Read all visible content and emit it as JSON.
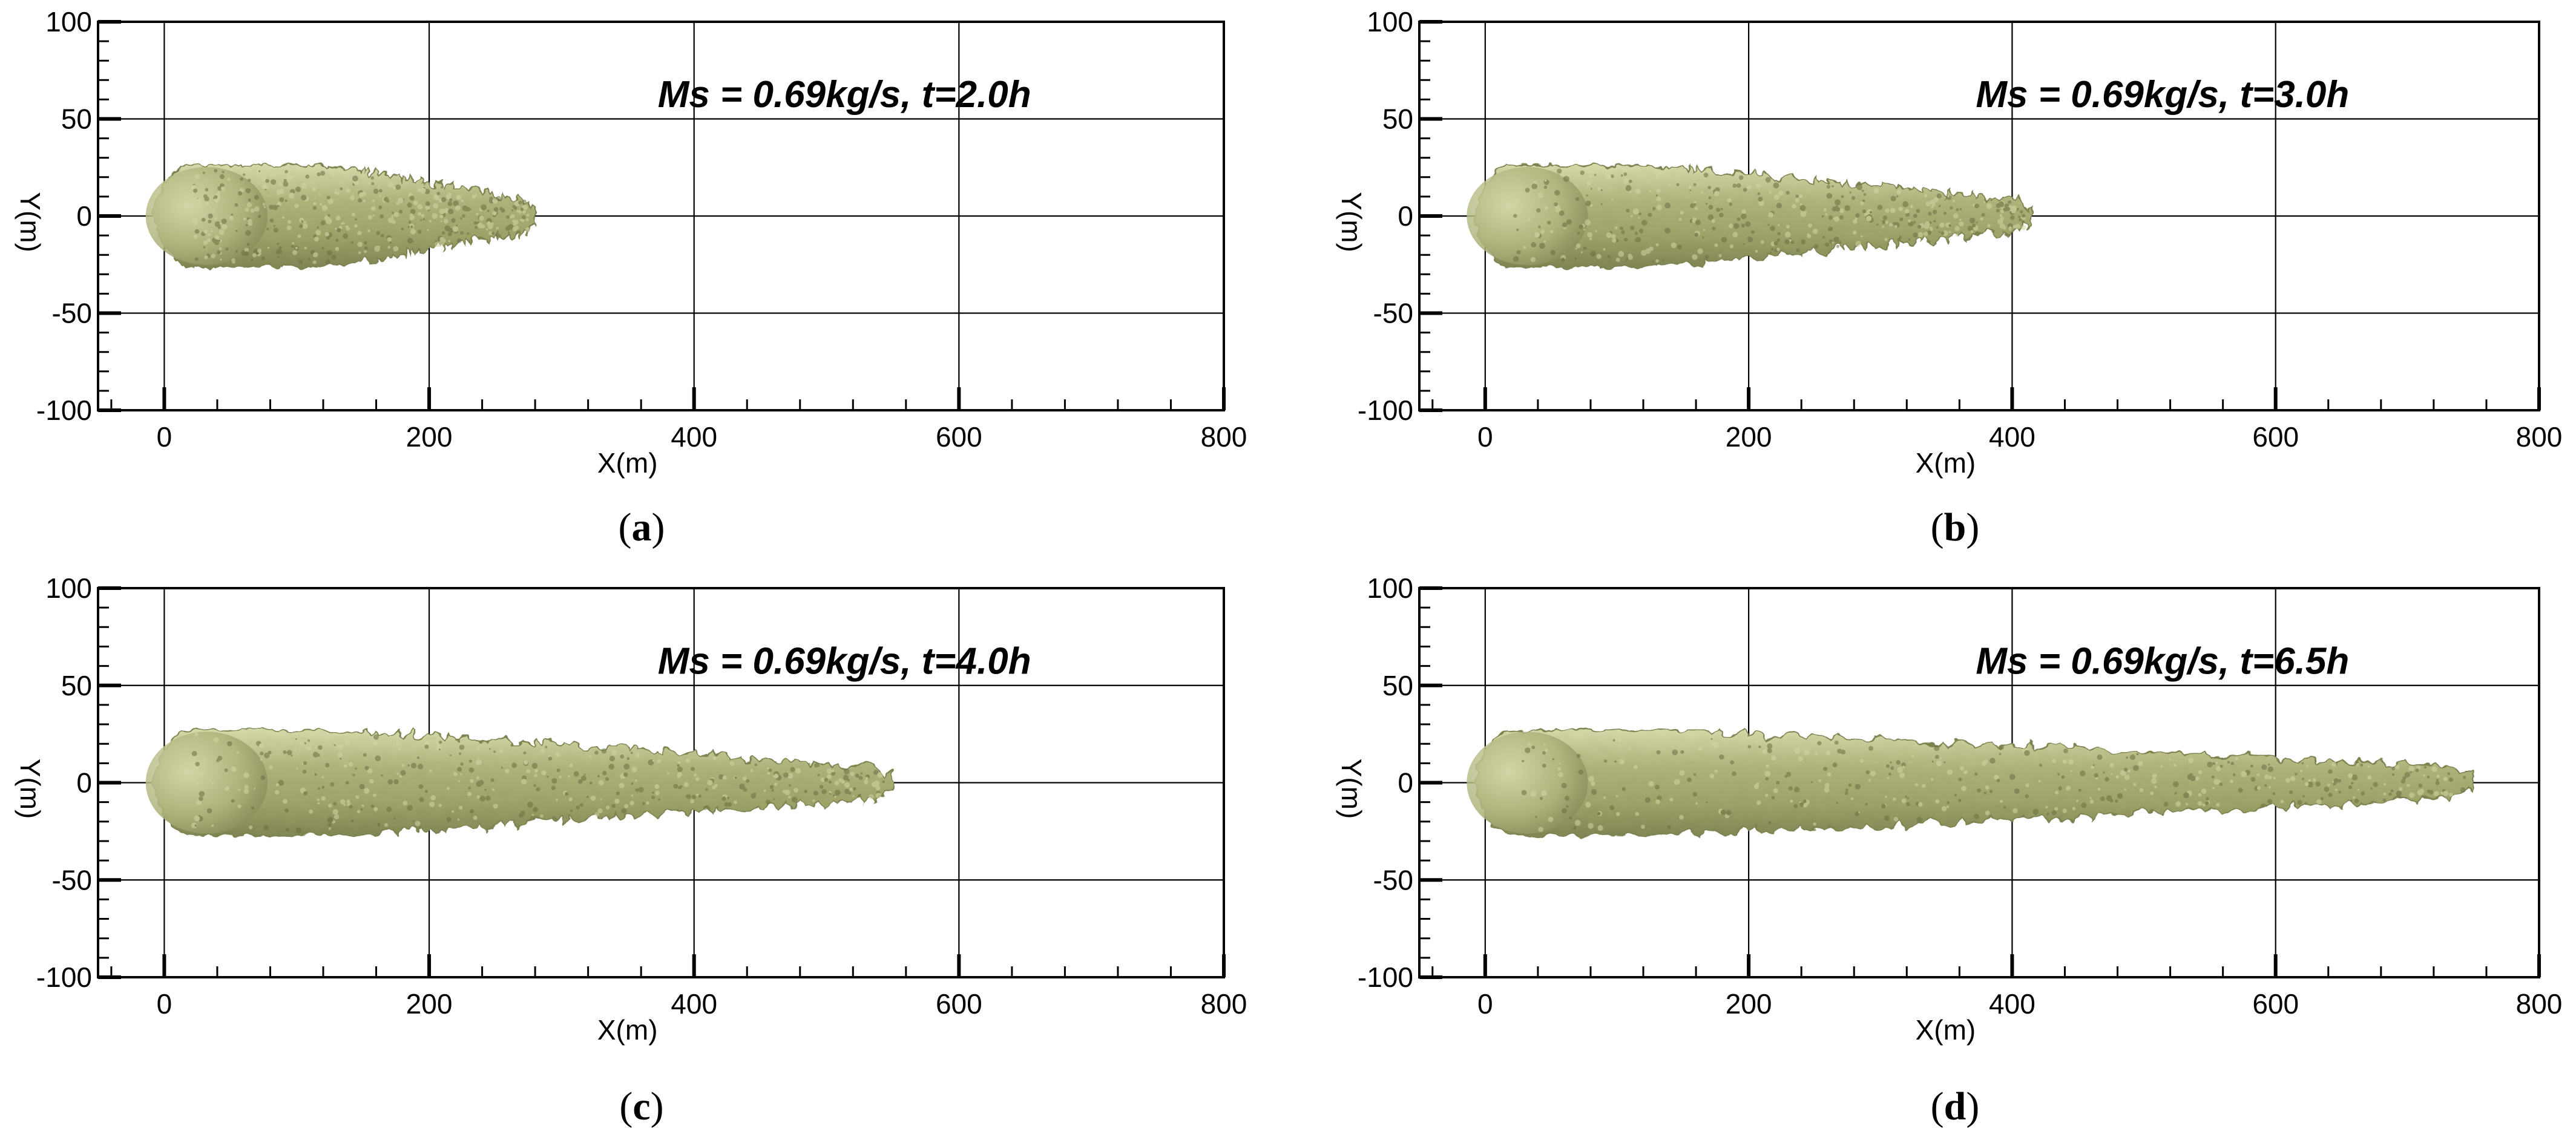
{
  "figure": {
    "panels": [
      {
        "caption_open": "(",
        "caption_letter": "a",
        "caption_close": ")"
      },
      {
        "caption_open": "(",
        "caption_letter": "b",
        "caption_close": ")"
      },
      {
        "caption_open": "(",
        "caption_letter": "c",
        "caption_close": ")"
      },
      {
        "caption_open": "(",
        "caption_letter": "d",
        "caption_close": ")"
      }
    ]
  },
  "colors": {
    "plume_fill": "#a6ab74",
    "plume_edge": "#7d8250",
    "plume_dark": "#6b7043",
    "plume_light": "#d3d6a4",
    "grid": "#000000",
    "axis": "#000000"
  },
  "chart_data": [
    {
      "type": "isosurface-plume",
      "annotation": "Ms = 0.69kg/s, t=2.0h",
      "xlabel": "X(m)",
      "ylabel": "Y(m)",
      "xlim": [
        -50,
        800
      ],
      "ylim": [
        -100,
        100
      ],
      "xticks": [
        0,
        200,
        400,
        600,
        800
      ],
      "yticks": [
        -100,
        -50,
        0,
        50,
        100
      ],
      "xtick_labels": [
        "0",
        "200",
        "400",
        "600",
        "800"
      ],
      "ytick_labels": [
        "-100",
        "-50",
        "0",
        "50",
        "100"
      ],
      "grid": true,
      "plume": {
        "x_start": -8,
        "x_end": 280,
        "max_half_width": 26
      }
    },
    {
      "type": "isosurface-plume",
      "annotation": "Ms = 0.69kg/s, t=3.0h",
      "xlabel": "X(m)",
      "ylabel": "Y(m)",
      "xlim": [
        -50,
        800
      ],
      "ylim": [
        -100,
        100
      ],
      "xticks": [
        0,
        200,
        400,
        600,
        800
      ],
      "yticks": [
        -100,
        -50,
        0,
        50,
        100
      ],
      "xtick_labels": [
        "0",
        "200",
        "400",
        "600",
        "800"
      ],
      "ytick_labels": [
        "-100",
        "-50",
        "0",
        "50",
        "100"
      ],
      "grid": true,
      "plume": {
        "x_start": -8,
        "x_end": 415,
        "max_half_width": 26
      }
    },
    {
      "type": "isosurface-plume",
      "annotation": "Ms = 0.69kg/s, t=4.0h",
      "xlabel": "X(m)",
      "ylabel": "Y(m)",
      "xlim": [
        -50,
        800
      ],
      "ylim": [
        -100,
        100
      ],
      "xticks": [
        0,
        200,
        400,
        600,
        800
      ],
      "yticks": [
        -100,
        -50,
        0,
        50,
        100
      ],
      "xtick_labels": [
        "0",
        "200",
        "400",
        "600",
        "800"
      ],
      "ytick_labels": [
        "-100",
        "-50",
        "0",
        "50",
        "100"
      ],
      "grid": true,
      "plume": {
        "x_start": -8,
        "x_end": 550,
        "max_half_width": 27
      }
    },
    {
      "type": "isosurface-plume",
      "annotation": "Ms = 0.69kg/s, t=6.5h",
      "xlabel": "X(m)",
      "ylabel": "Y(m)",
      "xlim": [
        -50,
        800
      ],
      "ylim": [
        -100,
        100
      ],
      "xticks": [
        0,
        200,
        400,
        600,
        800
      ],
      "yticks": [
        -100,
        -50,
        0,
        50,
        100
      ],
      "xtick_labels": [
        "0",
        "200",
        "400",
        "600",
        "800"
      ],
      "ytick_labels": [
        "-100",
        "-50",
        "0",
        "50",
        "100"
      ],
      "grid": true,
      "plume": {
        "x_start": -8,
        "x_end": 750,
        "max_half_width": 27
      }
    }
  ]
}
